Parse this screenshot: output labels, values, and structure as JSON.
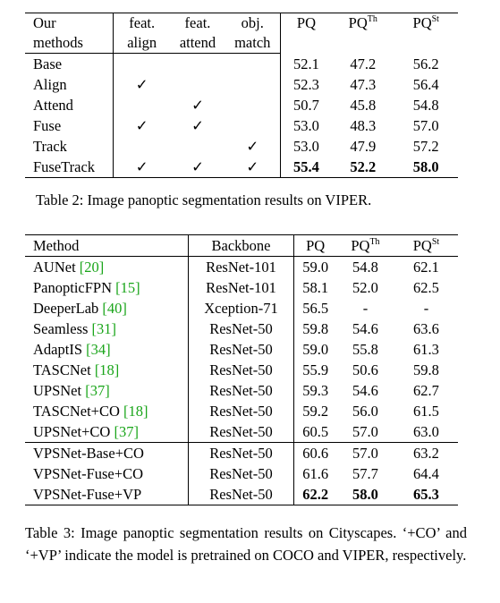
{
  "table2": {
    "header_row1": [
      "Our",
      "feat.",
      "feat.",
      "obj.",
      "PQ",
      "PQ",
      "PQ"
    ],
    "header_row2": [
      "methods",
      "align",
      "attend",
      "match"
    ],
    "sup": [
      "Th",
      "St"
    ],
    "rows": [
      [
        "Base",
        "",
        "",
        "",
        "52.1",
        "47.2",
        "56.2"
      ],
      [
        "Align",
        "✓",
        "",
        "",
        "52.3",
        "47.3",
        "56.4"
      ],
      [
        "Attend",
        "",
        "✓",
        "",
        "50.7",
        "45.8",
        "54.8"
      ],
      [
        "Fuse",
        "✓",
        "✓",
        "",
        "53.0",
        "48.3",
        "57.0"
      ],
      [
        "Track",
        "",
        "",
        "✓",
        "53.0",
        "47.9",
        "57.2"
      ],
      [
        "FuseTrack",
        "✓",
        "✓",
        "✓",
        "55.4",
        "52.2",
        "58.0"
      ]
    ],
    "caption": "Table 2: Image panoptic segmentation results on VIPER."
  },
  "table3": {
    "headers": [
      "Method",
      "Backbone",
      "PQ",
      "PQ",
      "PQ"
    ],
    "sup": [
      "Th",
      "St"
    ],
    "rows": [
      [
        "AUNet ",
        "[20]",
        "ResNet-101",
        "59.0",
        "54.8",
        "62.1"
      ],
      [
        "PanopticFPN ",
        "[15]",
        "ResNet-101",
        "58.1",
        "52.0",
        "62.5"
      ],
      [
        "DeeperLab ",
        "[40]",
        "Xception-71",
        "56.5",
        "-",
        "-"
      ],
      [
        "Seamless ",
        "[31]",
        "ResNet-50",
        "59.8",
        "54.6",
        "63.6"
      ],
      [
        "AdaptIS ",
        "[34]",
        "ResNet-50",
        "59.0",
        "55.8",
        "61.3"
      ],
      [
        "TASCNet ",
        "[18]",
        "ResNet-50",
        "55.9",
        "50.6",
        "59.8"
      ],
      [
        "UPSNet ",
        "[37]",
        "ResNet-50",
        "59.3",
        "54.6",
        "62.7"
      ],
      [
        "TASCNet+CO ",
        "[18]",
        "ResNet-50",
        "59.2",
        "56.0",
        "61.5"
      ],
      [
        "UPSNet+CO ",
        "[37]",
        "ResNet-50",
        "60.5",
        "57.0",
        "63.0"
      ],
      [
        "VPSNet-Base+CO",
        "",
        "ResNet-50",
        "60.6",
        "57.0",
        "63.2"
      ],
      [
        "VPSNet-Fuse+CO",
        "",
        "ResNet-50",
        "61.6",
        "57.7",
        "64.4"
      ],
      [
        "VPSNet-Fuse+VP",
        "",
        "ResNet-50",
        "62.2",
        "58.0",
        "65.3"
      ]
    ],
    "caption": "Table 3:  Image panoptic segmentation results on Cityscapes. ‘+CO’ and ‘+VP’ indicate the model is pretrained on COCO and VIPER, respectively."
  }
}
